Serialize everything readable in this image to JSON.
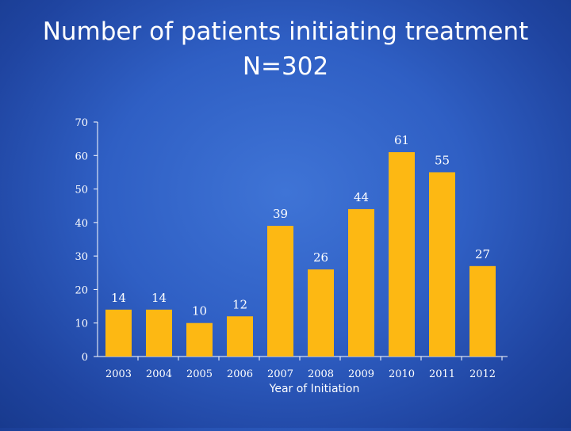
{
  "slide": {
    "title_line1": "Number of patients initiating treatment",
    "title_line2": "N=302"
  },
  "colors": {
    "bar": "#fdb813",
    "axis": "#ffffff"
  },
  "chart_data": {
    "type": "bar",
    "title": "Number of patients initiating treatment N=302",
    "xlabel": "Year of Initiation",
    "ylabel": "",
    "ylim": [
      0,
      70
    ],
    "yticks": [
      0,
      10,
      20,
      30,
      40,
      50,
      60,
      70
    ],
    "categories": [
      "2003",
      "2004",
      "2005",
      "2006",
      "2007",
      "2008",
      "2009",
      "2010",
      "2011",
      "2012"
    ],
    "values": [
      14,
      14,
      10,
      12,
      39,
      26,
      44,
      61,
      55,
      27
    ],
    "grid": false,
    "legend": "none"
  }
}
